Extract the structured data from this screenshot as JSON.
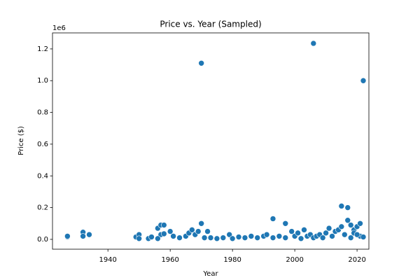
{
  "chart_data": {
    "type": "scatter",
    "title": "Price vs. Year (Sampled)",
    "x_label": "Year",
    "y_label": "Price ($)",
    "y_offset_label": "1e6",
    "color": "#1f77b4",
    "x": [
      1927,
      1927,
      1932,
      1932,
      1934,
      1949,
      1950,
      1950,
      1953,
      1954,
      1956,
      1957,
      1958,
      1957,
      1958,
      1956,
      1960,
      1961,
      1963,
      1965,
      1966,
      1967,
      1968,
      1969,
      1970,
      1970,
      1972,
      1971,
      1973,
      1975,
      1977,
      1979,
      1980,
      1982,
      1984,
      1986,
      1988,
      1990,
      1991,
      1993,
      1993,
      1995,
      1997,
      1997,
      1999,
      2000,
      2001,
      2002,
      2003,
      2004,
      2005,
      2006,
      2006,
      2007,
      2008,
      2009,
      2010,
      2011,
      2012,
      2013,
      2014,
      2015,
      2015,
      2016,
      2017,
      2017,
      2018,
      2019,
      2020,
      2021,
      2021,
      2022,
      2022,
      2018,
      2019,
      2020
    ],
    "values": [
      0.015,
      0.02,
      0.045,
      0.02,
      0.03,
      0.015,
      0.03,
      0.005,
      0.005,
      0.015,
      0.07,
      0.09,
      0.09,
      0.03,
      0.035,
      0.005,
      0.05,
      0.02,
      0.01,
      0.02,
      0.04,
      0.06,
      0.03,
      0.05,
      1.11,
      0.1,
      0.05,
      0.01,
      0.01,
      0.005,
      0.01,
      0.03,
      0.005,
      0.015,
      0.01,
      0.02,
      0.01,
      0.02,
      0.03,
      0.13,
      0.01,
      0.02,
      0.1,
      0.01,
      0.05,
      0.02,
      0.04,
      0.005,
      0.06,
      0.02,
      0.03,
      1.235,
      0.01,
      0.02,
      0.03,
      0.01,
      0.04,
      0.07,
      0.02,
      0.05,
      0.06,
      0.08,
      0.21,
      0.03,
      0.2,
      0.12,
      0.09,
      0.06,
      0.08,
      0.1,
      0.02,
      1.0,
      0.015,
      0.01,
      0.04,
      0.03
    ],
    "xlim": [
      1922.2,
      2023.8
    ],
    "ylim": [
      -0.062,
      1.301
    ],
    "xticks": [
      1940,
      1960,
      1980,
      2000,
      2020
    ],
    "yticks": [
      {
        "value": 0,
        "label": "0.0"
      },
      0.2,
      0.4,
      0.6,
      0.8,
      {
        "value": 1,
        "label": "1.0"
      },
      1.2
    ]
  }
}
